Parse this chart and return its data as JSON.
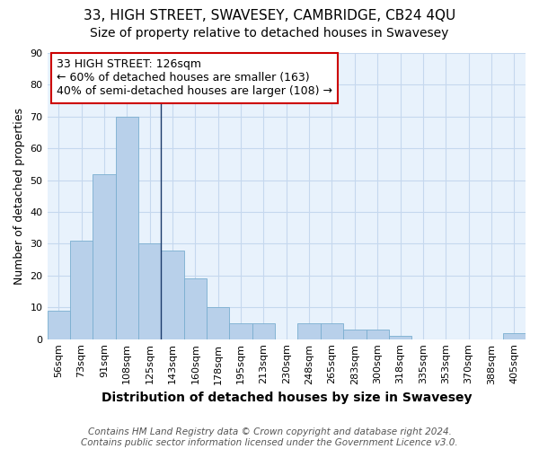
{
  "title": "33, HIGH STREET, SWAVESEY, CAMBRIDGE, CB24 4QU",
  "subtitle": "Size of property relative to detached houses in Swavesey",
  "xlabel": "Distribution of detached houses by size in Swavesey",
  "ylabel": "Number of detached properties",
  "categories": [
    "56sqm",
    "73sqm",
    "91sqm",
    "108sqm",
    "125sqm",
    "143sqm",
    "160sqm",
    "178sqm",
    "195sqm",
    "213sqm",
    "230sqm",
    "248sqm",
    "265sqm",
    "283sqm",
    "300sqm",
    "318sqm",
    "335sqm",
    "353sqm",
    "370sqm",
    "388sqm",
    "405sqm"
  ],
  "values": [
    9,
    31,
    52,
    70,
    30,
    28,
    19,
    10,
    5,
    5,
    0,
    5,
    5,
    3,
    3,
    1,
    0,
    0,
    0,
    0,
    2
  ],
  "bar_color": "#b8d0ea",
  "bar_edge_color": "#7aaed0",
  "highlight_line_index": 4,
  "highlight_line_color": "#1a3a6b",
  "annotation_line1": "33 HIGH STREET: 126sqm",
  "annotation_line2": "← 60% of detached houses are smaller (163)",
  "annotation_line3": "40% of semi-detached houses are larger (108) →",
  "annotation_box_color": "#ffffff",
  "annotation_box_edge_color": "#cc0000",
  "ylim": [
    0,
    90
  ],
  "yticks": [
    0,
    10,
    20,
    30,
    40,
    50,
    60,
    70,
    80,
    90
  ],
  "grid_color": "#c5d8ee",
  "background_color": "#e8f2fc",
  "title_fontsize": 11,
  "subtitle_fontsize": 10,
  "xlabel_fontsize": 10,
  "ylabel_fontsize": 9,
  "tick_fontsize": 8,
  "annotation_fontsize": 9,
  "footer_fontsize": 7.5
}
